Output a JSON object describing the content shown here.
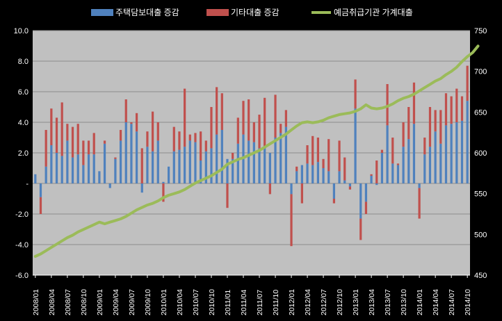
{
  "chart_data": {
    "type": "bar",
    "legend_position": "top",
    "grid": true,
    "colors": {
      "background": "#000000",
      "plot_background": "#c0c0c0",
      "gridline": "#8c8c8c",
      "text": "#ffffff",
      "housing_loans": "#4f81bd",
      "other_loans": "#c0504d",
      "household_loans_line": "#9bbb59"
    },
    "legend": [
      {
        "label": "주택담보대출 증감",
        "color_key": "housing_loans"
      },
      {
        "label": "기타대출 증감",
        "color_key": "other_loans"
      },
      {
        "label": "예금취급기관 가계대출",
        "color_key": "household_loans_line"
      }
    ],
    "y_left": {
      "min": -6,
      "max": 10,
      "ticks": [
        "-6.0",
        "-4.0",
        "-2.0",
        "-",
        "2.0",
        "4.0",
        "6.0",
        "8.0",
        "10.0"
      ]
    },
    "y_right": {
      "min": 450,
      "max": 750,
      "ticks": [
        "450",
        "500",
        "550",
        "600",
        "650",
        "700",
        "750"
      ]
    },
    "x_tick_labels": [
      "2008/01",
      "2008/04",
      "2008/07",
      "2008/10",
      "2009/01",
      "2009/04",
      "2009/07",
      "2009/10",
      "2010/01",
      "2010/04",
      "2010/07",
      "2010/10",
      "2011/01",
      "2011/04",
      "2011/07",
      "2011/10",
      "2012/01",
      "2012/04",
      "2012/07",
      "2012/10",
      "2013/01",
      "2013/04",
      "2013/07",
      "2013/10",
      "2014/01",
      "2014/04",
      "2014/07",
      "2014/10"
    ],
    "start_year": 2008,
    "start_month": 1,
    "series": [
      {
        "name": "주택담보대출 증감",
        "axis": "left",
        "kind": "stacked-bar",
        "values": [
          0.6,
          -0.9,
          1.1,
          2.5,
          2.0,
          1.8,
          2.8,
          1.7,
          1.9,
          1.2,
          1.9,
          1.9,
          0.8,
          2.6,
          -0.3,
          1.6,
          2.8,
          4.0,
          3.9,
          3.4,
          -0.6,
          2.4,
          2.1,
          2.8,
          0.1,
          1.1,
          2.1,
          2.2,
          2.4,
          2.8,
          2.7,
          1.5,
          2.1,
          2.3,
          3.2,
          3.5,
          1.6,
          1.6,
          2.6,
          3.2,
          2.8,
          2.7,
          2.3,
          2.3,
          2.0,
          3.0,
          3.3,
          3.7,
          -0.7,
          0.8,
          1.2,
          1.3,
          1.2,
          1.4,
          1.0,
          0.8,
          -1.0,
          0.8,
          0.2,
          -0.2,
          4.9,
          -2.3,
          -1.2,
          0.5,
          -0.1,
          2.0,
          3.8,
          1.3,
          1.2,
          2.4,
          2.9,
          3.9,
          -0.3,
          1.9,
          2.4,
          3.4,
          2.6,
          3.8,
          3.9,
          4.0,
          4.1,
          5.4
        ]
      },
      {
        "name": "기타대출 증감",
        "axis": "left",
        "kind": "stacked-bar",
        "values": [
          0.0,
          -1.1,
          2.4,
          2.4,
          2.3,
          3.5,
          1.1,
          2.0,
          2.0,
          1.6,
          0.9,
          1.4,
          0.0,
          0.2,
          0.0,
          0.1,
          0.7,
          1.5,
          0.1,
          1.2,
          2.3,
          1.0,
          2.6,
          1.2,
          -1.2,
          0.0,
          1.6,
          1.2,
          3.8,
          0.4,
          0.6,
          1.9,
          0.7,
          2.7,
          3.1,
          2.4,
          -1.6,
          0.4,
          1.7,
          2.2,
          2.7,
          1.3,
          2.2,
          3.3,
          -0.7,
          2.8,
          0.6,
          1.1,
          -3.4,
          0.3,
          -1.3,
          1.2,
          1.9,
          1.6,
          0.6,
          2.1,
          -0.3,
          2.0,
          1.5,
          -0.2,
          1.9,
          -1.4,
          -0.8,
          0.1,
          1.5,
          0.2,
          2.7,
          1.7,
          0.1,
          1.6,
          2.1,
          2.7,
          -2.0,
          1.1,
          2.6,
          1.4,
          2.2,
          2.1,
          1.8,
          2.2,
          1.6,
          2.3
        ]
      },
      {
        "name": "예금취급기관 가계대출",
        "axis": "right",
        "kind": "line",
        "values": [
          473,
          476,
          480,
          484,
          488,
          492,
          496,
          499,
          503,
          506,
          509,
          512,
          515,
          513,
          515,
          517,
          519,
          522,
          526,
          530,
          533,
          536,
          538,
          541,
          545,
          548,
          550,
          552,
          555,
          559,
          563,
          566,
          569,
          572,
          576,
          580,
          586,
          589,
          592,
          594,
          597,
          600,
          603,
          607,
          611,
          615,
          619,
          623,
          628,
          633,
          637,
          638,
          637,
          638,
          640,
          643,
          645,
          647,
          648,
          649,
          651,
          654,
          659,
          655,
          654,
          655,
          657,
          660,
          664,
          667,
          669,
          672,
          676,
          680,
          684,
          688,
          691,
          696,
          700,
          705,
          712,
          718,
          723,
          731
        ]
      }
    ]
  }
}
